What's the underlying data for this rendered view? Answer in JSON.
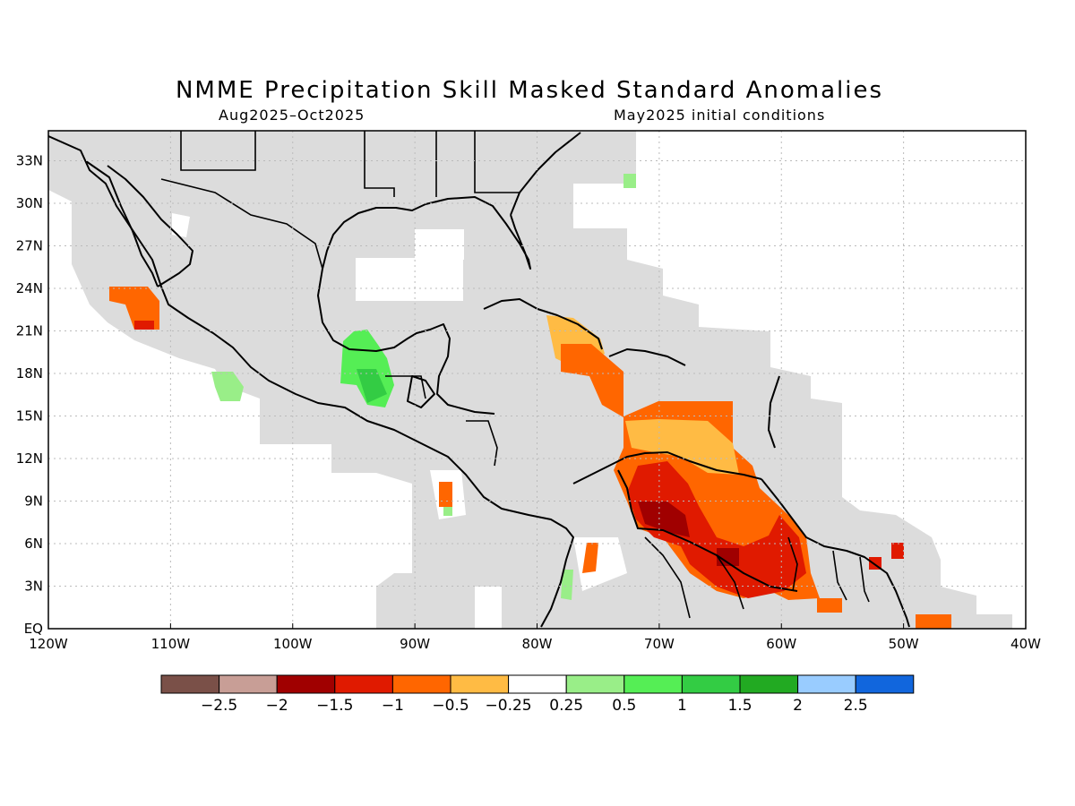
{
  "title": "NMME Precipitation Skill Masked Standard Anomalies",
  "valid_period": "Aug2025–Oct2025",
  "initial_conditions": "May2025 initial conditions",
  "map": {
    "lon_labels": [
      "120W",
      "110W",
      "100W",
      "90W",
      "80W",
      "70W",
      "60W",
      "50W",
      "40W"
    ],
    "lat_labels": [
      "EQ",
      "3N",
      "6N",
      "9N",
      "12N",
      "15N",
      "18N",
      "21N",
      "24N",
      "27N",
      "30N",
      "33N"
    ],
    "colors": {
      "mask_gray": "#dcdcdc",
      "coastline": "#000000",
      "grid": "#bbbbbb"
    },
    "regions": {
      "below_normal": "Caribbean / northern South America",
      "above_normal": "Southern Mexico, Pacific near 105W"
    }
  },
  "colorbar": {
    "colors": [
      "#7a5048",
      "#c89e96",
      "#a00000",
      "#e01a00",
      "#ff6600",
      "#ffbb44",
      "#ffffff",
      "#99ee88",
      "#55ee55",
      "#33cc44",
      "#22aa22",
      "#99ccff",
      "#1166dd"
    ],
    "labels": [
      "−2.5",
      "−2",
      "−1.5",
      "−1",
      "−0.5",
      "−0.25",
      "0.25",
      "0.5",
      "1",
      "1.5",
      "2",
      "2.5"
    ]
  }
}
